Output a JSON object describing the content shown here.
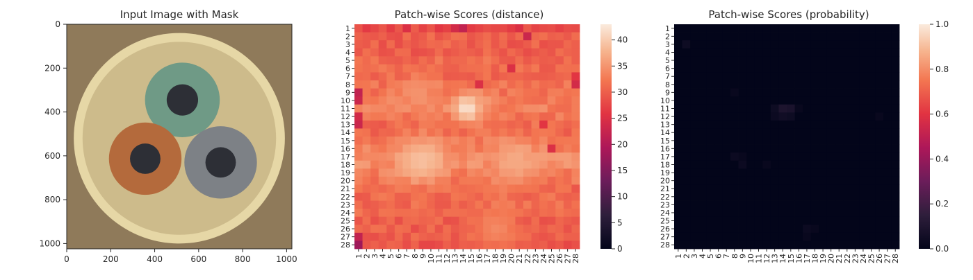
{
  "chart_data": [
    {
      "type": "image",
      "title": "Input Image with Mask",
      "xlim": [
        0,
        1024
      ],
      "ylim": [
        1024,
        0
      ],
      "xticks": [
        "0",
        "200",
        "400",
        "600",
        "800",
        "1000"
      ],
      "yticks": [
        "0",
        "200",
        "400",
        "600",
        "800",
        "1000"
      ],
      "image": {
        "background_color": "#8f7a5a",
        "outer_ring_color": "#e6d7a6",
        "inner_disc_color": "#cdbb8b",
        "cables": [
          {
            "name": "green",
            "color": "#6f9a86",
            "center": [
              526,
              345
            ],
            "radius": 170
          },
          {
            "name": "brown",
            "color": "#b46a3c",
            "center": [
              357,
              613
            ],
            "radius": 165
          },
          {
            "name": "grey",
            "color": "#7d8186",
            "center": [
              700,
              630
            ],
            "radius": 165
          }
        ]
      }
    },
    {
      "type": "heatmap",
      "title": "Patch-wise Scores (distance)",
      "xticks": [
        "1",
        "2",
        "3",
        "4",
        "5",
        "6",
        "7",
        "8",
        "9",
        "10",
        "11",
        "12",
        "13",
        "14",
        "15",
        "16",
        "17",
        "18",
        "19",
        "20",
        "21",
        "22",
        "23",
        "24",
        "25",
        "26",
        "27",
        "28"
      ],
      "yticks": [
        "1",
        "2",
        "3",
        "4",
        "5",
        "6",
        "7",
        "8",
        "9",
        "10",
        "11",
        "12",
        "13",
        "14",
        "15",
        "16",
        "17",
        "18",
        "19",
        "20",
        "21",
        "22",
        "23",
        "24",
        "25",
        "26",
        "27",
        "28"
      ],
      "colorbar": {
        "min": 0,
        "max": 43,
        "ticks": [
          "0",
          "5",
          "10",
          "15",
          "20",
          "25",
          "30",
          "35",
          "40"
        ]
      },
      "base_value": 31,
      "row_offsets": [
        -3,
        -1,
        -1,
        -1,
        0,
        0,
        0,
        1,
        1,
        2,
        2,
        1,
        0,
        0,
        1,
        2,
        3,
        3,
        2,
        1,
        0,
        0,
        0,
        0,
        -1,
        -1,
        -1,
        -2
      ],
      "hotspots": [
        {
          "row": 11,
          "col": 14.5,
          "value": 42,
          "spread": 1.3
        },
        {
          "row": 17.5,
          "col": 9,
          "value": 39,
          "spread": 2.0
        },
        {
          "row": 17.5,
          "col": 20.5,
          "value": 37,
          "spread": 2.0
        },
        {
          "row": 9,
          "col": 8.5,
          "value": 35,
          "spread": 1.5
        },
        {
          "row": 26,
          "col": 18,
          "value": 34,
          "spread": 1.8
        }
      ],
      "low_spots": [
        {
          "row": 1,
          "col": 14,
          "value": 22
        },
        {
          "row": 1,
          "col": 13,
          "value": 24
        },
        {
          "row": 1,
          "col": 7,
          "value": 25
        },
        {
          "row": 2,
          "col": 22,
          "value": 23
        },
        {
          "row": 1,
          "col": 21,
          "value": 25
        },
        {
          "row": 28,
          "col": 1,
          "value": 18
        },
        {
          "row": 27,
          "col": 1,
          "value": 22
        },
        {
          "row": 9,
          "col": 1,
          "value": 22
        },
        {
          "row": 10,
          "col": 1,
          "value": 23
        },
        {
          "row": 12,
          "col": 1,
          "value": 24
        },
        {
          "row": 13,
          "col": 1,
          "value": 23
        },
        {
          "row": 8,
          "col": 28,
          "value": 24
        },
        {
          "row": 7,
          "col": 28,
          "value": 26
        },
        {
          "row": 16,
          "col": 25,
          "value": 25
        },
        {
          "row": 13,
          "col": 24,
          "value": 26
        },
        {
          "row": 8,
          "col": 16,
          "value": 25
        },
        {
          "row": 6,
          "col": 20,
          "value": 25
        }
      ]
    },
    {
      "type": "heatmap",
      "title": "Patch-wise Scores (probability)",
      "xticks": [
        "1",
        "2",
        "3",
        "4",
        "5",
        "6",
        "7",
        "8",
        "9",
        "10",
        "11",
        "12",
        "13",
        "14",
        "15",
        "16",
        "17",
        "18",
        "19",
        "20",
        "21",
        "22",
        "23",
        "24",
        "25",
        "26",
        "27",
        "28"
      ],
      "yticks": [
        "1",
        "2",
        "3",
        "4",
        "5",
        "6",
        "7",
        "8",
        "9",
        "10",
        "11",
        "12",
        "13",
        "14",
        "15",
        "16",
        "17",
        "18",
        "19",
        "20",
        "21",
        "22",
        "23",
        "24",
        "25",
        "26",
        "27",
        "28"
      ],
      "colorbar": {
        "min": 0.0,
        "max": 1.0,
        "ticks": [
          "0.0",
          "0.2",
          "0.4",
          "0.6",
          "0.8",
          "1.0"
        ]
      },
      "base_value": 0.0,
      "cells": [
        {
          "row": 11,
          "col": 14,
          "value": 0.09
        },
        {
          "row": 11,
          "col": 15,
          "value": 0.08
        },
        {
          "row": 12,
          "col": 14,
          "value": 0.05
        },
        {
          "row": 12,
          "col": 15,
          "value": 0.04
        },
        {
          "row": 11,
          "col": 13,
          "value": 0.04
        },
        {
          "row": 12,
          "col": 13,
          "value": 0.03
        },
        {
          "row": 11,
          "col": 16,
          "value": 0.02
        },
        {
          "row": 3,
          "col": 2,
          "value": 0.04
        },
        {
          "row": 17,
          "col": 8,
          "value": 0.03
        },
        {
          "row": 18,
          "col": 9,
          "value": 0.03
        },
        {
          "row": 17,
          "col": 9,
          "value": 0.02
        },
        {
          "row": 26,
          "col": 17,
          "value": 0.03
        },
        {
          "row": 26,
          "col": 18,
          "value": 0.02
        },
        {
          "row": 27,
          "col": 17,
          "value": 0.02
        },
        {
          "row": 12,
          "col": 26,
          "value": 0.02
        },
        {
          "row": 9,
          "col": 8,
          "value": 0.02
        },
        {
          "row": 18,
          "col": 12,
          "value": 0.02
        }
      ]
    }
  ]
}
